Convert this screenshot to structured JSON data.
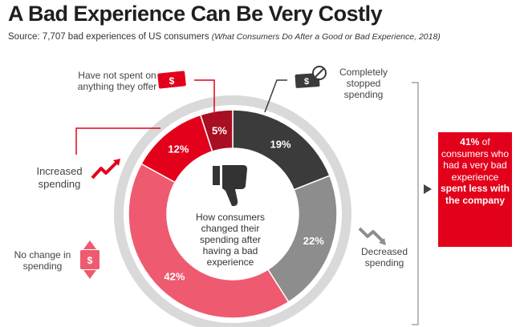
{
  "header": {
    "title": "A Bad Experience Can Be Very Costly",
    "source_prefix": "Source: 7,707 bad experiences of US consumers",
    "source_citation": "(What Consumers Do After a Good or Bad Experience, 2018)"
  },
  "chart_data": {
    "type": "pie",
    "center_label": "How consumers changed their spending after having a bad experience",
    "slices": [
      {
        "label": "Completely stopped spending",
        "value": 19,
        "display": "19%",
        "color": "#3b3b3b"
      },
      {
        "label": "Decreased spending",
        "value": 22,
        "display": "22%",
        "color": "#8d8d8d"
      },
      {
        "label": "No change in spending",
        "value": 42,
        "display": "42%",
        "color": "#ee5a6f"
      },
      {
        "label": "Increased spending",
        "value": 12,
        "display": "12%",
        "color": "#e3001b"
      },
      {
        "label": "Have not spent on anything they offer",
        "value": 5,
        "display": "5%",
        "color": "#a80f23"
      }
    ]
  },
  "labels": {
    "not_spent": "Have not spent on anything they offer",
    "stopped": "Completely stopped spending",
    "increased": "Increased spending",
    "decreased": "Decreased spending",
    "no_change": "No change in spending"
  },
  "callout": {
    "pct": "41%",
    "text": "of consumers who had a very bad experience",
    "emphasis": "spent less with the company"
  },
  "icons": [
    "thumbs-down-icon",
    "money-icon",
    "no-money-icon",
    "trend-up-icon",
    "trend-down-icon",
    "updown-money-icon"
  ]
}
